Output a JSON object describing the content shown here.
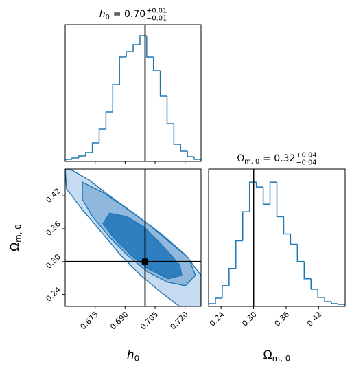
{
  "chart_data": [
    {
      "type": "histogram",
      "title": {
        "symbol": "h",
        "symbol_sub": "0",
        "value": "= 0.70",
        "plus": "+0.01",
        "minus": "−0.01"
      },
      "bins": [
        0.66,
        0.6634,
        0.6668,
        0.6702,
        0.6736,
        0.677,
        0.6804,
        0.6838,
        0.6872,
        0.6906,
        0.694,
        0.6974,
        0.7008,
        0.7042,
        0.7076,
        0.711,
        0.7144,
        0.7178,
        0.7212,
        0.7246,
        0.728
      ],
      "values": [
        3,
        5,
        8,
        13,
        27,
        47,
        72,
        112,
        152,
        160,
        170,
        183,
        152,
        132,
        95,
        55,
        25,
        15,
        7,
        3
      ],
      "color": "#1f77b4",
      "xlim": [
        0.66,
        0.728
      ],
      "ylim": [
        0,
        199
      ],
      "xticks": [
        0.675,
        0.69,
        0.705,
        0.72
      ],
      "truth": 0.7,
      "truth_color": "#000000"
    },
    {
      "type": "contour",
      "xlim": [
        0.66,
        0.728
      ],
      "ylim": [
        0.2183,
        0.469
      ],
      "xticks": [
        0.675,
        {
          "value": 0.69,
          "label": "0.690"
        },
        0.705,
        {
          "value": 0.72,
          "label": "0.720"
        }
      ],
      "yticks": [
        0.24,
        {
          "value": 0.3,
          "label": "0.30"
        },
        0.36,
        0.42
      ],
      "xlabel": {
        "symbol": "h",
        "symbol_sub": "0"
      },
      "ylabel": {
        "symbol": "Ω",
        "symbol_sub": "m, 0"
      },
      "line_color": "#1f77b4",
      "contours": [
        {
          "color": "#c6dbef",
          "x": [
            0.6624,
            0.672,
            0.6823,
            0.6943,
            0.7081,
            0.7201,
            0.728,
            0.728,
            0.7173,
            0.7081,
            0.6978,
            0.6875,
            0.6789,
            0.6686,
            0.6607,
            0.66
          ],
          "y": [
            0.469,
            0.4488,
            0.4199,
            0.3884,
            0.3506,
            0.3128,
            0.275,
            0.2183,
            0.2183,
            0.2435,
            0.275,
            0.3128,
            0.3506,
            0.3947,
            0.4325,
            0.469
          ]
        },
        {
          "color": "#8fb8dc",
          "x": [
            0.6686,
            0.6789,
            0.6892,
            0.7012,
            0.7115,
            0.7218,
            0.7252,
            0.7201,
            0.7115,
            0.7012,
            0.6909,
            0.6823,
            0.6737,
            0.6686
          ],
          "y": [
            0.4451,
            0.4262,
            0.401,
            0.3695,
            0.338,
            0.3065,
            0.275,
            0.2561,
            0.2624,
            0.2813,
            0.3128,
            0.3443,
            0.3821,
            0.4136
          ]
        },
        {
          "color": "#2f7fc0",
          "x": [
            0.6823,
            0.6909,
            0.6995,
            0.7081,
            0.7173,
            0.7184,
            0.7115,
            0.7012,
            0.6926,
            0.684,
            0.6789
          ],
          "y": [
            0.3884,
            0.3821,
            0.3632,
            0.3317,
            0.2939,
            0.275,
            0.2687,
            0.2876,
            0.3128,
            0.3443,
            0.3695
          ]
        }
      ],
      "truth": {
        "x": 0.7,
        "y": 0.3
      },
      "truth_color": "#000000"
    },
    {
      "type": "histogram",
      "title": {
        "symbol": "Ω",
        "symbol_sub": "m, 0",
        "value": "= 0.32",
        "plus": "+0.04",
        "minus": "−0.04"
      },
      "bins": [
        0.217,
        0.2296,
        0.2422,
        0.2548,
        0.2674,
        0.28,
        0.2926,
        0.3052,
        0.3178,
        0.3304,
        0.343,
        0.3556,
        0.3682,
        0.3808,
        0.3934,
        0.406,
        0.4186,
        0.4312,
        0.4438,
        0.4564,
        0.469
      ],
      "values": [
        4,
        12,
        30,
        55,
        95,
        137,
        180,
        173,
        148,
        180,
        130,
        105,
        90,
        65,
        40,
        25,
        13,
        7,
        4,
        3
      ],
      "color": "#1f77b4",
      "xlim": [
        0.217,
        0.469
      ],
      "ylim": [
        0,
        199
      ],
      "xticks": [
        0.24,
        {
          "value": 0.3,
          "label": "0.30"
        },
        0.36,
        0.42
      ],
      "xlabel": {
        "symbol": "Ω",
        "symbol_sub": "m, 0"
      },
      "truth": 0.3,
      "truth_color": "#000000"
    }
  ]
}
